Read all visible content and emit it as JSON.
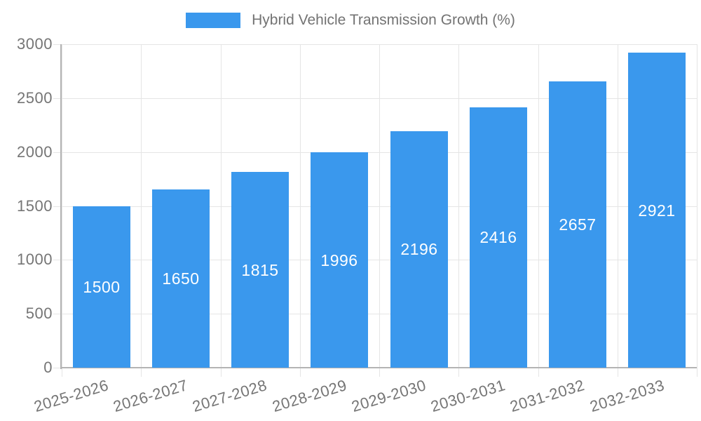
{
  "chart_data": {
    "type": "bar",
    "title": "Hybrid Vehicle Transmission Growth (%)",
    "categories": [
      "2025-2026",
      "2026-2027",
      "2027-2028",
      "2028-2029",
      "2029-2030",
      "2030-2031",
      "2031-2032",
      "2032-2033"
    ],
    "values": [
      1500,
      1650,
      1815,
      1996,
      2196,
      2416,
      2657,
      2921
    ],
    "value_labels": [
      "1500",
      "1650",
      "1815",
      "1996",
      "2196",
      "2416",
      "2657",
      "2921"
    ],
    "xlabel": "",
    "ylabel": "",
    "ylim": [
      0,
      3000
    ],
    "y_ticks": [
      0,
      500,
      1000,
      1500,
      2000,
      2500,
      3000
    ],
    "y_tick_labels": [
      "0",
      "500",
      "1000",
      "1500",
      "2000",
      "2500",
      "3000"
    ],
    "grid": true,
    "legend_position": "top",
    "colors": {
      "bar": "#3a98ed",
      "value_label": "#ffffff",
      "tick_label": "#757575",
      "legend_label": "#737373",
      "grid": "#e5e5e5",
      "axis": "#b4b4b4"
    }
  }
}
